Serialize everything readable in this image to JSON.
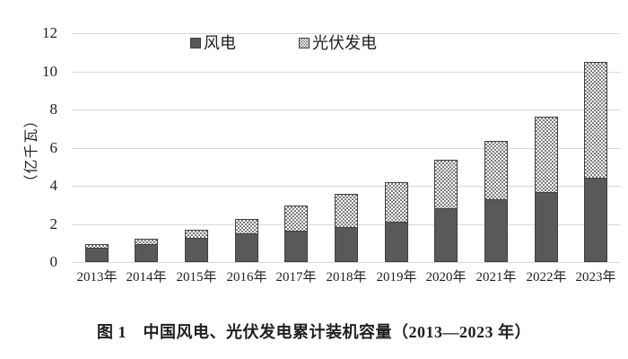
{
  "figure": {
    "caption": "图 1　中国风电、光伏发电累计装机容量（2013—2023 年）"
  },
  "chart_data": {
    "type": "bar",
    "stacked": true,
    "title": "",
    "ylabel": "（亿千瓦）",
    "unit": "亿千瓦",
    "categories": [
      "2013年",
      "2014年",
      "2015年",
      "2016年",
      "2017年",
      "2018年",
      "2019年",
      "2020年",
      "2021年",
      "2022年",
      "2023年"
    ],
    "series": [
      {
        "name": "风电",
        "values": [
          0.77,
          0.96,
          1.29,
          1.49,
          1.64,
          1.84,
          2.1,
          2.82,
          3.28,
          3.65,
          4.41
        ],
        "fill": "solid",
        "color": "#595959"
      },
      {
        "name": "光伏发电",
        "values": [
          0.19,
          0.28,
          0.43,
          0.77,
          1.3,
          1.75,
          2.05,
          2.53,
          3.07,
          3.93,
          6.09
        ],
        "fill": "checker-dot-pattern",
        "color": "#7d7d7d"
      }
    ],
    "ylim": [
      0,
      12
    ],
    "yticks": [
      0,
      2,
      4,
      6,
      8,
      10,
      12
    ],
    "grid": "horizontal",
    "legend_position": "top-center"
  },
  "colors": {
    "bar_border": "#3f3f3f",
    "gridline": "#d9d9d9",
    "text": "#1f1f1f",
    "background": "#ffffff"
  }
}
